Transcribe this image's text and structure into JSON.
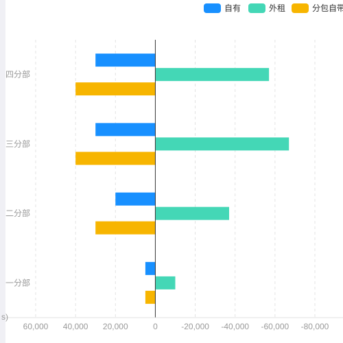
{
  "chart_data": {
    "type": "bar",
    "orientation": "horizontal",
    "x_axis_inverse": true,
    "categories": [
      "一分部",
      "二分部",
      "三分部",
      "四分部"
    ],
    "series": [
      {
        "name": "自有",
        "color": "#1890ff",
        "values": [
          5000,
          20000,
          30000,
          30000
        ]
      },
      {
        "name": "外租",
        "color": "#44d7b6",
        "values": [
          -10000,
          -37000,
          -67000,
          -57000
        ]
      },
      {
        "name": "分包自带",
        "color": "#f7b500",
        "values": [
          5000,
          30000,
          40000,
          40000
        ]
      }
    ],
    "xlim": [
      60000,
      -80000
    ],
    "x_ticks": [
      60000,
      40000,
      20000,
      0,
      -20000,
      -40000,
      -60000,
      -80000
    ],
    "x_tick_labels": [
      "60,000",
      "40,000",
      "20,000",
      "0",
      "-20,000",
      "-40,000",
      "-60,000",
      "-80,000"
    ],
    "grid": true,
    "legend_position": "top-right",
    "partial_axis_label": "s)"
  }
}
